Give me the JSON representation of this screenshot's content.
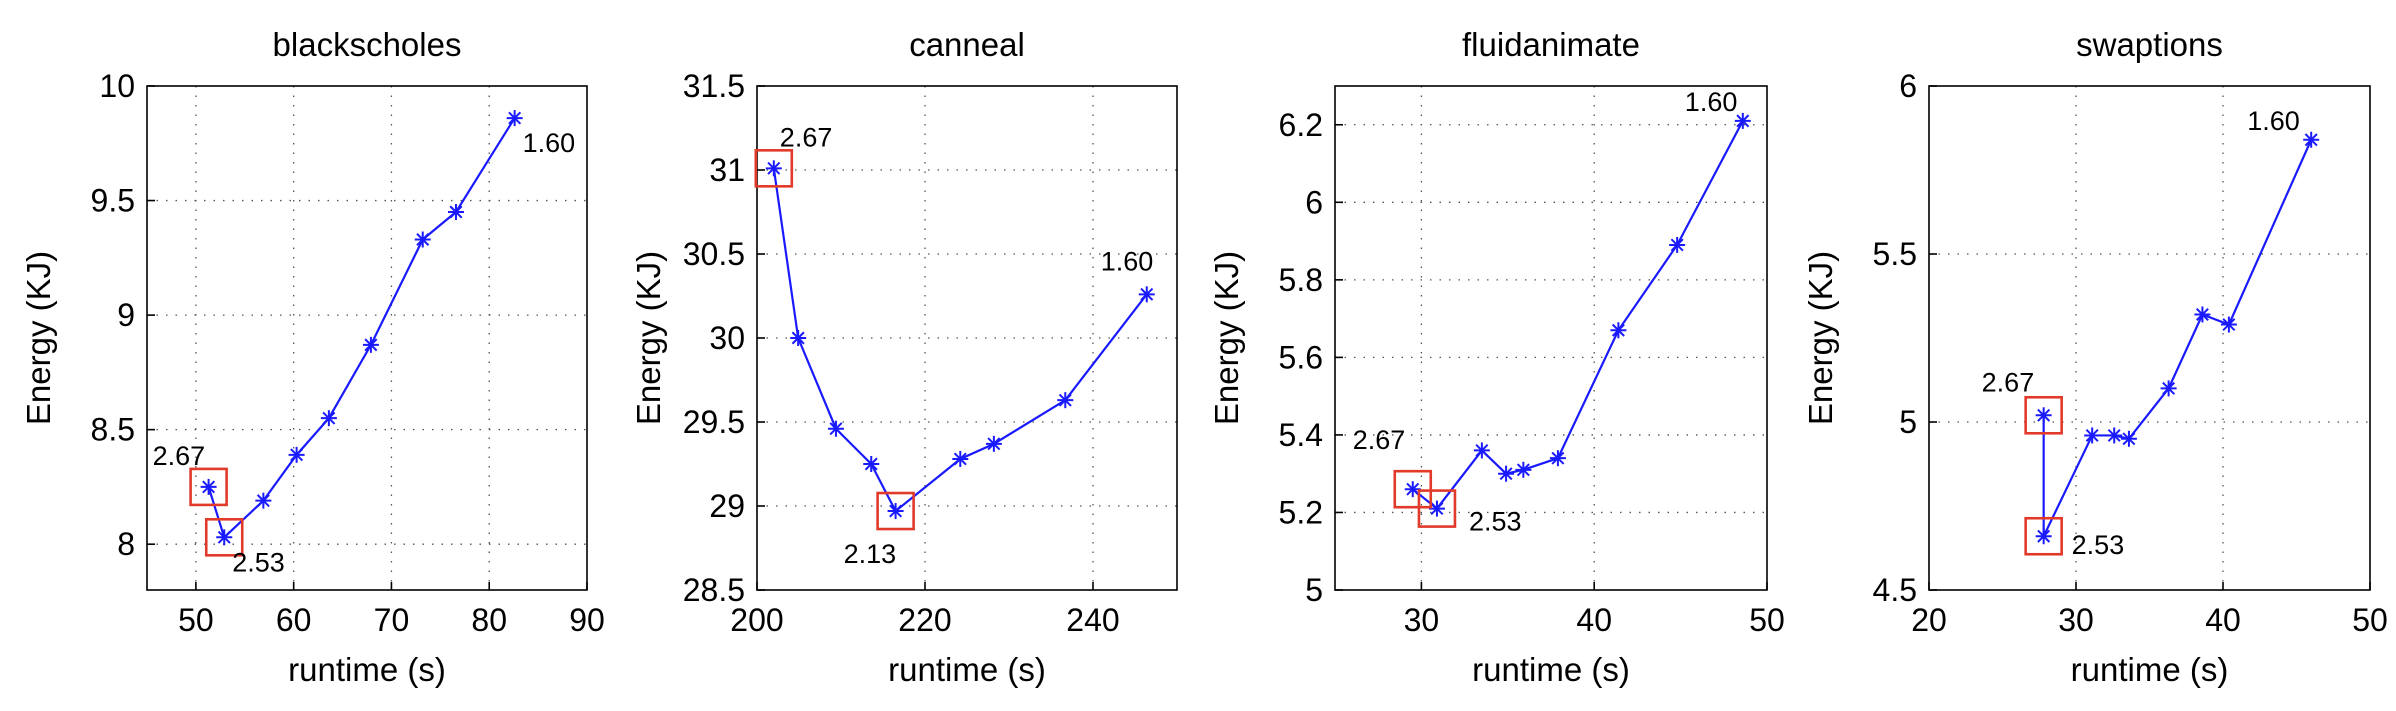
{
  "chart_data": [
    {
      "type": "line",
      "title": "blackscholes",
      "xlabel": "runtime (s)",
      "ylabel": "Energy (KJ)",
      "xlim": [
        45,
        90
      ],
      "ylim": [
        7.8,
        10
      ],
      "xticks": [
        "50",
        "60",
        "70",
        "80",
        "90"
      ],
      "yticks": [
        "8",
        "8.5",
        "9",
        "9.5",
        "10"
      ],
      "grid": true,
      "color": "#1a1aff",
      "highlight_color": "#e23a2a",
      "series": [
        {
          "x": [
            51.3,
            52.9,
            56.9,
            60.3,
            63.6,
            67.9,
            73.2,
            76.6,
            82.6
          ],
          "y": [
            8.25,
            8.03,
            8.19,
            8.39,
            8.55,
            8.87,
            9.33,
            9.45,
            9.86
          ]
        }
      ],
      "annotations": [
        {
          "text": "1.60",
          "x": 82.6,
          "y": 9.86,
          "box": false
        },
        {
          "text": "2.67",
          "x": 51.3,
          "y": 8.25,
          "box": true
        },
        {
          "text": "2.53",
          "x": 52.9,
          "y": 8.03,
          "box": true
        }
      ]
    },
    {
      "type": "line",
      "title": "canneal",
      "xlabel": "runtime (s)",
      "ylabel": "Energy (KJ)",
      "xlim": [
        200,
        250
      ],
      "ylim": [
        28.5,
        31.5
      ],
      "xticks": [
        "200",
        "220",
        "240"
      ],
      "yticks": [
        "28.5",
        "29",
        "29.5",
        "30",
        "30.5",
        "31",
        "31.5"
      ],
      "grid": true,
      "color": "#1a1aff",
      "highlight_color": "#e23a2a",
      "series": [
        {
          "x": [
            202,
            204.9,
            209.4,
            213.6,
            216.5,
            224.2,
            228.2,
            236.7,
            246.4
          ],
          "y": [
            31.01,
            30.0,
            29.46,
            29.25,
            28.97,
            29.28,
            29.37,
            29.63,
            30.26
          ]
        }
      ],
      "annotations": [
        {
          "text": "2.67",
          "x": 202,
          "y": 31.01,
          "box": true
        },
        {
          "text": "2.13",
          "x": 216.5,
          "y": 28.97,
          "box": true
        },
        {
          "text": "1.60",
          "x": 246.4,
          "y": 30.26,
          "box": false
        }
      ]
    },
    {
      "type": "line",
      "title": "fluidanimate",
      "xlabel": "runtime (s)",
      "ylabel": "Energy (KJ)",
      "xlim": [
        25,
        50
      ],
      "ylim": [
        5.0,
        6.3
      ],
      "xticks": [
        "30",
        "40",
        "50"
      ],
      "yticks": [
        "5",
        "5.2",
        "5.4",
        "5.6",
        "5.8",
        "6",
        "6.2"
      ],
      "grid": true,
      "color": "#1a1aff",
      "highlight_color": "#e23a2a",
      "series": [
        {
          "x": [
            29.5,
            30.9,
            33.5,
            34.9,
            35.9,
            37.9,
            41.4,
            44.8,
            48.6
          ],
          "y": [
            5.26,
            5.21,
            5.36,
            5.3,
            5.31,
            5.34,
            5.67,
            5.89,
            6.21
          ]
        }
      ],
      "annotations": [
        {
          "text": "1.60",
          "x": 48.6,
          "y": 6.21,
          "box": false
        },
        {
          "text": "2.67",
          "x": 29.5,
          "y": 5.26,
          "box": true
        },
        {
          "text": "2.53",
          "x": 30.9,
          "y": 5.21,
          "box": true
        }
      ]
    },
    {
      "type": "line",
      "title": "swaptions",
      "xlabel": "runtime (s)",
      "ylabel": "Energy (KJ)",
      "xlim": [
        20,
        50
      ],
      "ylim": [
        4.5,
        6.0
      ],
      "xticks": [
        "20",
        "30",
        "40",
        "50"
      ],
      "yticks": [
        "4.5",
        "5",
        "5.5",
        "6"
      ],
      "grid": true,
      "color": "#1a1aff",
      "highlight_color": "#e23a2a",
      "series": [
        {
          "x": [
            27.8,
            27.8,
            31.1,
            32.6,
            33.6,
            36.3,
            38.6,
            40.4,
            46.0
          ],
          "y": [
            5.02,
            4.66,
            4.96,
            4.96,
            4.95,
            5.1,
            5.32,
            5.29,
            5.84
          ]
        }
      ],
      "annotations": [
        {
          "text": "1.60",
          "x": 46.0,
          "y": 5.84,
          "box": false
        },
        {
          "text": "2.67",
          "x": 27.8,
          "y": 5.02,
          "box": true
        },
        {
          "text": "2.53",
          "x": 27.8,
          "y": 4.66,
          "box": true
        }
      ]
    }
  ]
}
